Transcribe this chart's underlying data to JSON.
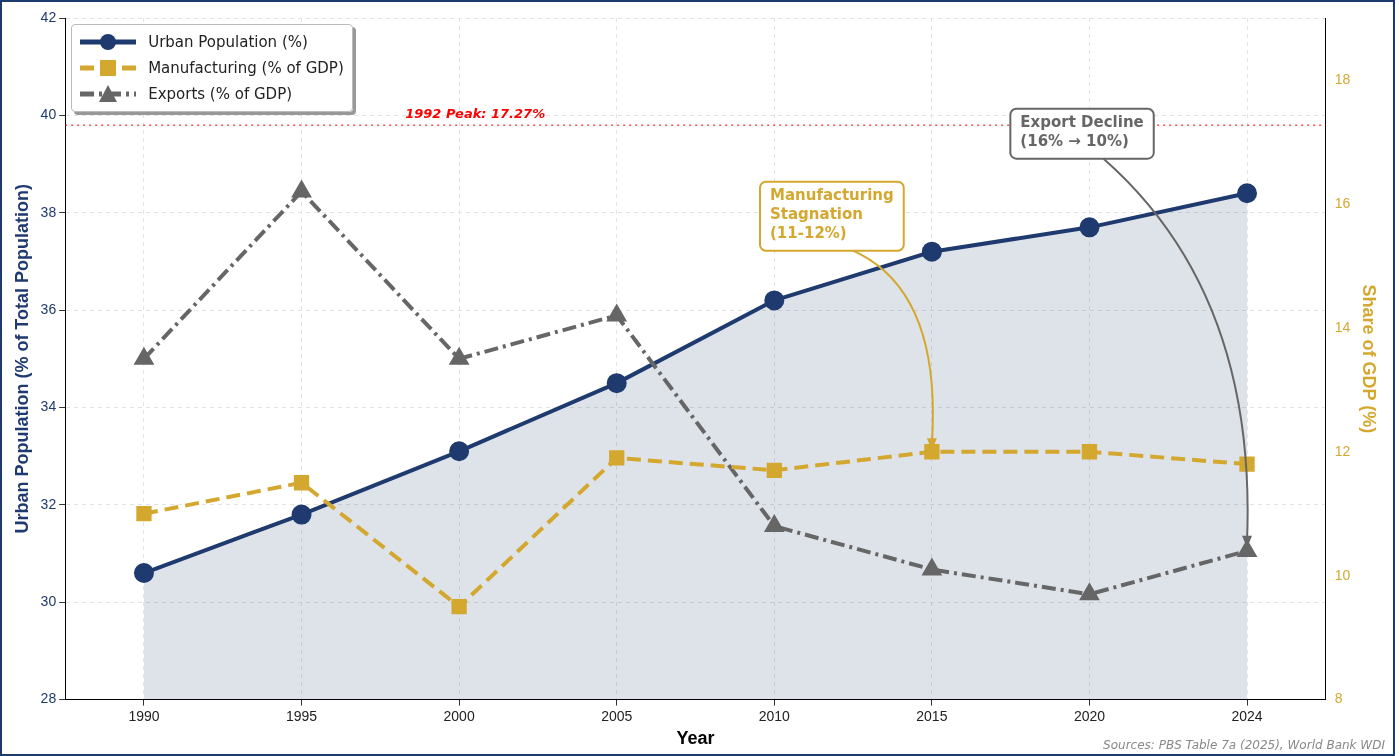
{
  "chart_data": {
    "type": "line",
    "xlabel": "Year",
    "ylabel": "Urban Population (% of Total Population)",
    "y2label": "Share of GDP (%)",
    "categories": [
      "1990",
      "1995",
      "2000",
      "2005",
      "2010",
      "2015",
      "2020",
      "2024"
    ],
    "series": [
      {
        "name": "Urban Population (%)",
        "type": "area",
        "color": "#1f3a6e",
        "marker": "circle",
        "line_style": "solid",
        "values": [
          30.6,
          31.8,
          33.1,
          34.5,
          36.2,
          37.2,
          37.7,
          38.4
        ]
      },
      {
        "name": "Manufacturing (% of GDP)",
        "axis": "y2",
        "color": "#d4a82f",
        "marker": "square",
        "line_style": "dashed",
        "values": [
          11.0,
          11.5,
          9.5,
          11.9,
          11.7,
          12.0,
          12.0,
          11.8
        ]
      },
      {
        "name": "Exports (% of GDP)",
        "axis": "y2",
        "color": "#666666",
        "marker": "triangle",
        "line_style": "dashdot",
        "values": [
          13.5,
          16.2,
          13.5,
          14.2,
          10.8,
          10.1,
          9.7,
          10.4
        ]
      }
    ],
    "ylim": [
      28,
      42
    ],
    "yticks": [
      28,
      30,
      32,
      34,
      36,
      38,
      40,
      42
    ],
    "y2lim": [
      8,
      19
    ],
    "y2ticks": [
      8,
      10,
      12,
      14,
      16,
      18
    ],
    "ref_lines": [
      {
        "axis": "y2",
        "value": 17.27,
        "label": "1992 Peak: 17.27%",
        "color": "#ff0000",
        "line_style": "dotted"
      }
    ],
    "annotations": [
      {
        "text": "Export Decline\n(16% → 10%)",
        "x": "2024",
        "y": 31.1
      },
      {
        "text": "Manufacturing\nStagnation\n(11-12%)",
        "x": "2015",
        "y": 33.1
      },
      "Sources: PBS Table 7a (2025), World Bank WDI"
    ],
    "grid": true,
    "legend": "top left"
  }
}
